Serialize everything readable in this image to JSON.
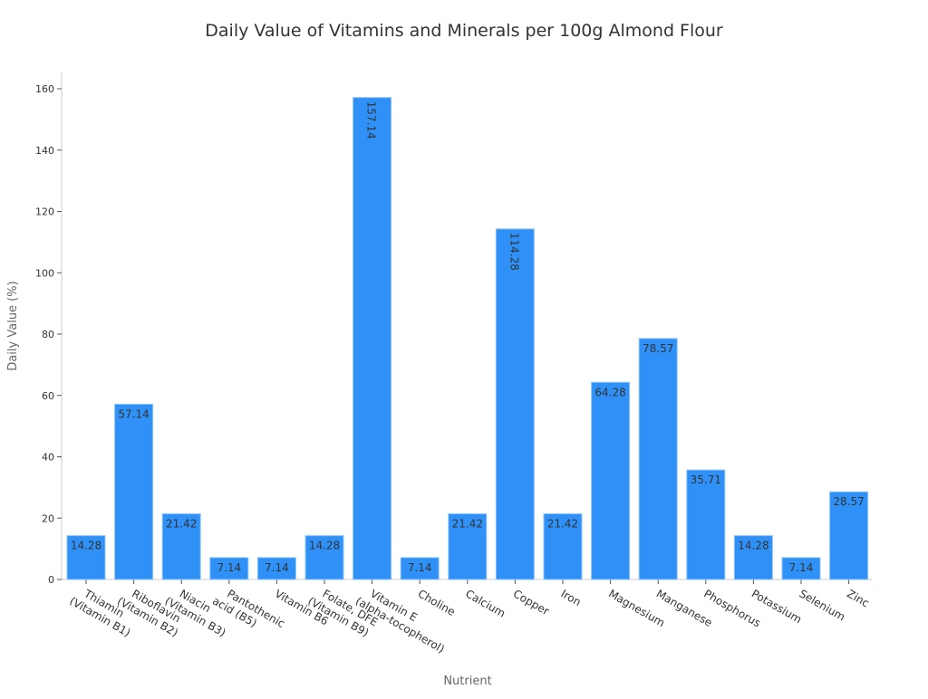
{
  "chart_data": {
    "type": "bar",
    "title": "Daily Value of Vitamins and Minerals per 100g Almond Flour",
    "xlabel": "Nutrient",
    "ylabel": "Daily Value (%)",
    "ylim": [
      0,
      165
    ],
    "yticks": [
      0,
      20,
      40,
      60,
      80,
      100,
      120,
      140,
      160
    ],
    "grid": false,
    "bar_color": "#2f91f7",
    "label_color": "#333333",
    "categories": [
      "Thiamin\n(Vitamin B1)",
      "Riboflavin\n(Vitamin B2)",
      "Niacin\n(Vitamin B3)",
      "Pantothenic\nacid (B5)",
      "Vitamin B6",
      "Folate, DFE\n(Vitamin B9)",
      "Vitamin E\n(alpha-tocopherol)",
      "Choline",
      "Calcium",
      "Copper",
      "Iron",
      "Magnesium",
      "Manganese",
      "Phosphorus",
      "Potassium",
      "Selenium",
      "Zinc"
    ],
    "values": [
      14.28,
      57.14,
      21.42,
      7.14,
      7.14,
      14.28,
      157.14,
      7.14,
      21.42,
      114.28,
      21.42,
      64.28,
      78.57,
      35.71,
      14.28,
      7.14,
      28.57
    ],
    "data_labels": [
      "14.28",
      "57.14",
      "21.42",
      "7.14",
      "7.14",
      "14.28",
      "157.14",
      "7.14",
      "21.42",
      "114.28",
      "21.42",
      "64.28",
      "78.57",
      "35.71",
      "14.28",
      "7.14",
      "28.57"
    ]
  }
}
